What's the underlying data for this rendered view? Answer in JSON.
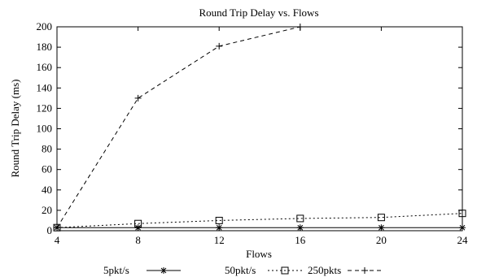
{
  "chart_data": {
    "type": "line",
    "title": "Round Trip Delay vs. Flows",
    "xlabel": "Flows",
    "ylabel": "Round Trip Delay (ms)",
    "xlim": [
      4,
      24
    ],
    "ylim": [
      0,
      200
    ],
    "x_ticks": [
      4,
      8,
      12,
      16,
      20,
      24
    ],
    "y_ticks": [
      0,
      20,
      40,
      60,
      80,
      100,
      120,
      140,
      160,
      180,
      200
    ],
    "grid": false,
    "legend_position": "bottom",
    "series": [
      {
        "name": "5pkt/s",
        "line_style": "solid",
        "marker": "asterisk",
        "x": [
          4,
          8,
          12,
          16,
          20,
          24
        ],
        "y": [
          3,
          3,
          3,
          3,
          3,
          3
        ]
      },
      {
        "name": "50pkt/s",
        "line_style": "dotted",
        "marker": "square",
        "x": [
          4,
          8,
          12,
          16,
          20,
          24
        ],
        "y": [
          3,
          7,
          10,
          12,
          13,
          17
        ]
      },
      {
        "name": "250pkts",
        "line_style": "dashed",
        "marker": "plus",
        "x": [
          4,
          8,
          12,
          16
        ],
        "y": [
          3,
          130,
          181,
          200
        ]
      }
    ]
  }
}
